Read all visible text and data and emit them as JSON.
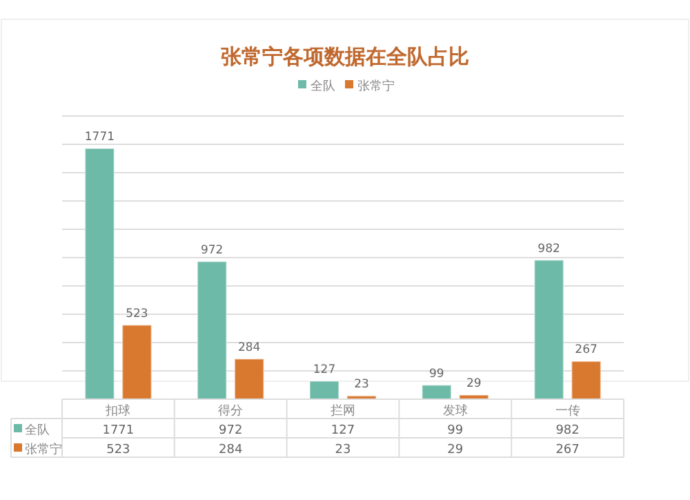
{
  "chart_data": [
    {
      "type": "bar",
      "title": "张常宁各项数据在全队占比",
      "categories": [
        "扣球",
        "得分",
        "拦网",
        "发球",
        "一传"
      ],
      "series": [
        {
          "name": "全队",
          "color": "#6dbaa8",
          "values": [
            1771,
            972,
            127,
            99,
            982
          ],
          "value_labels": [
            "1771",
            "972",
            "127",
            "99",
            "982"
          ]
        },
        {
          "name": "张常宁",
          "color": "#d9782f",
          "values": [
            523,
            284,
            23,
            29,
            267
          ],
          "value_labels": [
            "523",
            "284",
            "23",
            "29",
            "267"
          ]
        }
      ],
      "ylim": [
        0,
        2000
      ],
      "yticks": [
        {
          "value": 200,
          "label": null
        },
        {
          "value": 400,
          "label": null
        },
        {
          "value": 600,
          "label": null
        },
        {
          "value": 800,
          "label": null
        },
        {
          "value": 1000,
          "label": null
        },
        {
          "value": 1200,
          "label": null
        },
        {
          "value": 1400,
          "label": null
        },
        {
          "value": 1600,
          "label": null
        },
        {
          "value": 1800,
          "label": null
        },
        {
          "value": 2000,
          "label": null
        }
      ],
      "grid": "y",
      "legend": "top",
      "tick_labels": "x"
    },
    {
      "type": "other",
      "series": [
        {
          "name": "全队",
          "color": "#6dbaa8"
        },
        {
          "name": "张常宁",
          "color": "#d9782f"
        }
      ],
      "annotations": [
        "1771",
        "972",
        "127",
        "99",
        "982",
        "523",
        "284",
        "23",
        "29",
        "267"
      ],
      "legend": "left"
    }
  ]
}
